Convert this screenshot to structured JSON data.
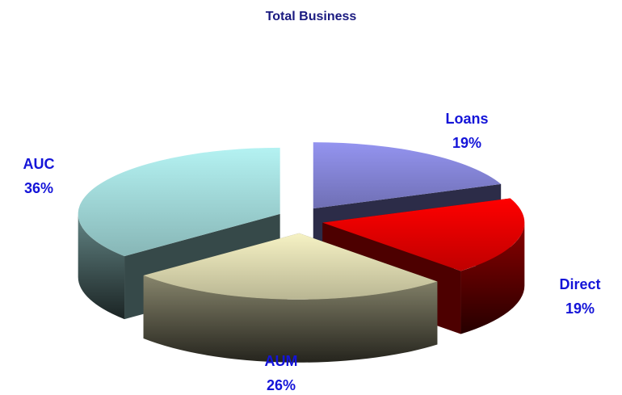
{
  "chart_data": {
    "type": "pie",
    "title": "Total Business",
    "categories": [
      "Loans",
      "Direct",
      "AUM",
      "AUC"
    ],
    "values": [
      19,
      19,
      26,
      36
    ],
    "value_labels": [
      "19%",
      "19%",
      "26%",
      "36%"
    ],
    "colors": [
      "#9494f0",
      "#ff0000",
      "#f6f2c4",
      "#b4f2f2"
    ]
  }
}
